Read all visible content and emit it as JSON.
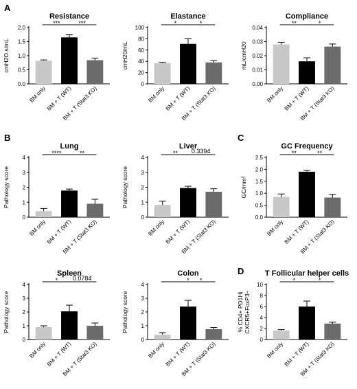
{
  "panel_letters": [
    "A",
    "B",
    "C",
    "D"
  ],
  "colors": {
    "bm_only": "#c8c8c8",
    "wt": "#000000",
    "ko": "#6b6b6b"
  },
  "chart_data": [
    {
      "id": "resistance",
      "panel": "A",
      "type": "bar",
      "title": "Resistance",
      "ylabel": "cmH2O.s/mL",
      "categories": [
        "BM only",
        "BM + T (WT)",
        "BM + T (Stat3 KO)"
      ],
      "values": [
        0.82,
        1.65,
        0.84
      ],
      "errors": [
        0.03,
        0.09,
        0.07
      ],
      "ylim": [
        0,
        2.0
      ],
      "yticks": [
        "0.0",
        "0.5",
        "1.0",
        "1.5",
        "2.0"
      ],
      "significance": [
        {
          "from": 0,
          "to": 1,
          "label": "***"
        },
        {
          "from": 1,
          "to": 2,
          "label": "***"
        }
      ]
    },
    {
      "id": "elastance",
      "panel": "A",
      "type": "bar",
      "title": "Elastance",
      "ylabel": "cmH20/mL",
      "categories": [
        "BM only",
        "BM + T (WT)",
        "BM + T (Stat3 KO)"
      ],
      "values": [
        37,
        71,
        38
      ],
      "errors": [
        1.5,
        9,
        3
      ],
      "ylim": [
        0,
        100
      ],
      "yticks": [
        "0",
        "20",
        "40",
        "60",
        "80",
        "100"
      ],
      "significance": [
        {
          "from": 0,
          "to": 1,
          "label": "*"
        },
        {
          "from": 1,
          "to": 2,
          "label": "*"
        }
      ]
    },
    {
      "id": "compliance",
      "panel": "A",
      "type": "bar",
      "title": "Compliance",
      "ylabel": "mL/cmH20",
      "categories": [
        "BM only",
        "BM + T (WT)",
        "BM + T (Stat3 KO)"
      ],
      "values": [
        0.028,
        0.016,
        0.0265
      ],
      "errors": [
        0.0015,
        0.0025,
        0.0018
      ],
      "ylim": [
        0,
        0.04
      ],
      "yticks": [
        "0.00",
        "0.01",
        "0.02",
        "0.03",
        "0.04"
      ],
      "significance": [
        {
          "from": 0,
          "to": 1,
          "label": "**"
        },
        {
          "from": 1,
          "to": 2,
          "label": "*"
        }
      ]
    },
    {
      "id": "lung",
      "panel": "B",
      "type": "bar",
      "title": "Lung",
      "ylabel": "Pathology score",
      "categories": [
        "BM only",
        "BM + T (WT)",
        "BM + T (Stat3 KO)"
      ],
      "values": [
        0.4,
        1.78,
        0.9
      ],
      "errors": [
        0.18,
        0.1,
        0.3
      ],
      "ylim": [
        0,
        4
      ],
      "yticks": [
        "0",
        "1",
        "2",
        "3",
        "4"
      ],
      "significance": [
        {
          "from": 0,
          "to": 1,
          "label": "****"
        },
        {
          "from": 1,
          "to": 2,
          "label": "**"
        }
      ]
    },
    {
      "id": "liver",
      "panel": "B",
      "type": "bar",
      "title": "Liver",
      "ylabel": "Pathology score",
      "categories": [
        "BM only",
        "BM + T (WT)",
        "BM + T (Stat3 KO)"
      ],
      "values": [
        0.82,
        1.95,
        1.7
      ],
      "errors": [
        0.25,
        0.12,
        0.2
      ],
      "ylim": [
        0,
        4
      ],
      "yticks": [
        "0",
        "1",
        "2",
        "3",
        "4"
      ],
      "significance": [
        {
          "from": 0,
          "to": 1,
          "label": "**"
        },
        {
          "from": 1,
          "to": 2,
          "label": "0.3394"
        }
      ]
    },
    {
      "id": "gc-frequency",
      "panel": "C",
      "type": "bar",
      "title": "GC Frequency",
      "ylabel": "GC/mm²",
      "categories": [
        "BM only",
        "BM + T (WT)",
        "BM + T (Stat3 KO)"
      ],
      "values": [
        0.85,
        1.9,
        0.82
      ],
      "errors": [
        0.12,
        0.06,
        0.13
      ],
      "ylim": [
        0,
        2.5
      ],
      "yticks": [
        "0.0",
        "0.5",
        "1.0",
        "1.5",
        "2.0",
        "2.5"
      ],
      "significance": [
        {
          "from": 0,
          "to": 1,
          "label": "**"
        },
        {
          "from": 1,
          "to": 2,
          "label": "**"
        }
      ]
    },
    {
      "id": "spleen",
      "panel": "B",
      "type": "bar",
      "title": "Spleen",
      "ylabel": "Pathology score",
      "categories": [
        "BM only",
        "BM + T (WT)",
        "BM + T (Stat3 KO)"
      ],
      "values": [
        0.9,
        2.05,
        1.0
      ],
      "errors": [
        0.1,
        0.45,
        0.2
      ],
      "ylim": [
        0,
        4
      ],
      "yticks": [
        "0",
        "1",
        "2",
        "3",
        "4"
      ],
      "significance": [
        {
          "from": 0,
          "to": 1,
          "label": "*"
        },
        {
          "from": 1,
          "to": 2,
          "label": "0.0784"
        }
      ]
    },
    {
      "id": "colon",
      "panel": "B",
      "type": "bar",
      "title": "Colon",
      "ylabel": "Pathology score",
      "categories": [
        "BM only",
        "BM + T (WT)",
        "BM + T (Stat3 KO)"
      ],
      "values": [
        0.35,
        2.4,
        0.75
      ],
      "errors": [
        0.15,
        0.45,
        0.12
      ],
      "ylim": [
        0,
        4
      ],
      "yticks": [
        "0",
        "1",
        "2",
        "3",
        "4"
      ],
      "significance": [
        {
          "from": 0,
          "to": 2,
          "label": "*"
        },
        {
          "from": 1,
          "to": 2,
          "label": "*"
        }
      ]
    },
    {
      "id": "tfh",
      "panel": "D",
      "type": "bar",
      "title": "T Follicular helper cells",
      "ylabel": "% CD4+ PD1Hi",
      "ylabel2": "CXCR5+FoxP3−",
      "categories": [
        "BM only",
        "BM + T (WT)",
        "BM + T (Stat3 KO)"
      ],
      "values": [
        1.65,
        6.0,
        2.9
      ],
      "errors": [
        0.15,
        1.0,
        0.25
      ],
      "ylim": [
        0,
        10
      ],
      "yticks": [
        "0",
        "2",
        "4",
        "6",
        "8",
        "10"
      ],
      "significance": [
        {
          "from": 0,
          "to": 1,
          "label": "*"
        },
        {
          "from": 1,
          "to": 2,
          "label": "*"
        }
      ]
    }
  ]
}
